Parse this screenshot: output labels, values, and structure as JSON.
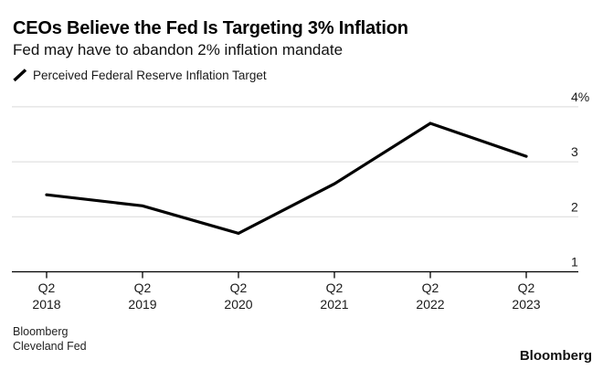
{
  "chart_data": {
    "type": "line",
    "title": "CEOs Believe the Fed Is Targeting 3% Inflation",
    "subtitle": "Fed may have to abandon 2% inflation mandate",
    "series": [
      {
        "name": "Perceived Federal Reserve Inflation Target",
        "values": [
          2.4,
          2.2,
          1.7,
          2.6,
          3.7,
          3.1
        ]
      }
    ],
    "categories": [
      {
        "top": "Q2",
        "bottom": "2018"
      },
      {
        "top": "Q2",
        "bottom": "2019"
      },
      {
        "top": "Q2",
        "bottom": "2020"
      },
      {
        "top": "Q2",
        "bottom": "2021"
      },
      {
        "top": "Q2",
        "bottom": "2022"
      },
      {
        "top": "Q2",
        "bottom": "2023"
      }
    ],
    "y_ticks": [
      {
        "label": "4%",
        "value": 4
      },
      {
        "label": "3",
        "value": 3
      },
      {
        "label": "2",
        "value": 2
      },
      {
        "label": "1",
        "value": 1
      }
    ],
    "ylim": [
      1,
      4
    ],
    "grid": "horizontal",
    "legend_position": "top-left",
    "legend_marker": "slash-line-icon",
    "line_color": "#000000",
    "gridline_color": "#d9d9d9",
    "axis_color": "#000000"
  },
  "footer": {
    "source_line1": "Bloomberg",
    "source_line2": "Cleveland Fed",
    "brand": "Bloomberg"
  }
}
